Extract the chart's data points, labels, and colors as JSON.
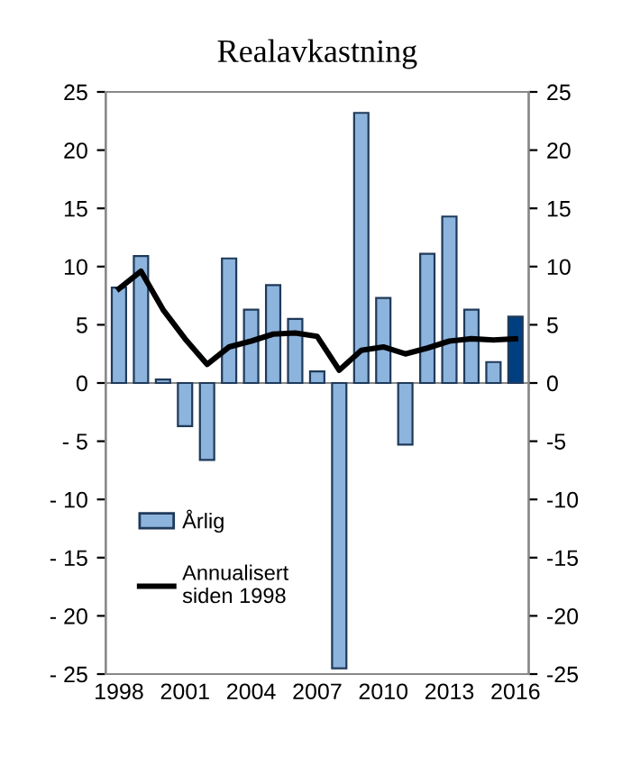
{
  "chart_data": {
    "type": "bar",
    "title": "Realavkastning",
    "categories": [
      "1998",
      null,
      null,
      "2001",
      null,
      null,
      "2004",
      null,
      null,
      "2007",
      null,
      null,
      "2010",
      null,
      null,
      "2013",
      null,
      null,
      "2016"
    ],
    "series": [
      {
        "name": "Årlig",
        "color": "#8db4dc",
        "colors": [
          "#8db4dc",
          "#8db4dc",
          "#8db4dc",
          "#8db4dc",
          "#8db4dc",
          "#8db4dc",
          "#8db4dc",
          "#8db4dc",
          "#8db4dc",
          "#8db4dc",
          "#8db4dc",
          "#8db4dc",
          "#8db4dc",
          "#8db4dc",
          "#8db4dc",
          "#8db4dc",
          "#8db4dc",
          "#8db4dc",
          "#003f7f"
        ],
        "values": [
          8.2,
          10.9,
          0.3,
          -3.7,
          -6.6,
          10.7,
          6.3,
          8.4,
          5.5,
          1.0,
          -24.5,
          23.2,
          7.3,
          -5.3,
          11.1,
          14.3,
          6.3,
          1.8,
          5.7
        ]
      },
      {
        "name": "Annualisert\nsiden 1998",
        "type": "line",
        "color": "#000000",
        "values": [
          8.1,
          9.6,
          6.3,
          3.8,
          1.6,
          3.1,
          3.6,
          4.2,
          4.3,
          4.0,
          1.1,
          2.8,
          3.1,
          2.5,
          3.0,
          3.6,
          3.8,
          3.7,
          3.8
        ]
      }
    ],
    "ylim": [
      -25,
      25
    ],
    "yticks": [
      {
        "value": -25,
        "label": "- 25"
      },
      {
        "value": -20,
        "label": "- 20"
      },
      {
        "value": -15,
        "label": "- 15"
      },
      {
        "value": -10,
        "label": "- 10"
      },
      {
        "value": -5,
        "label": "- 5"
      },
      0,
      5,
      10,
      15,
      20,
      25
    ],
    "y2lim": [
      -25,
      25
    ],
    "y2ticks": [
      -25,
      -20,
      -15,
      -10,
      -5,
      0,
      5,
      10,
      15,
      20,
      25
    ],
    "ref_lines": [
      {
        "axis": "y",
        "value": 0,
        "color": "#888888"
      }
    ],
    "legend": "bottom left"
  }
}
